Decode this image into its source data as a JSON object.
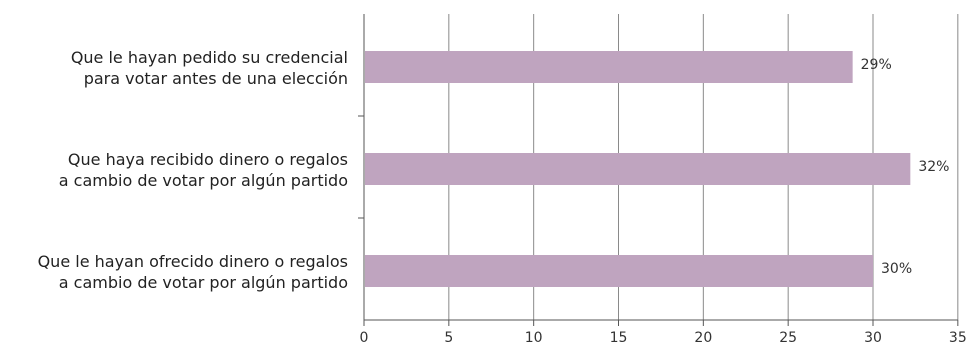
{
  "chart_data": {
    "type": "bar",
    "orientation": "horizontal",
    "categories": [
      [
        "Que le hayan pedido su credencial",
        "para votar antes de una elección"
      ],
      [
        "Que haya recibido dinero o regalos",
        "a cambio de votar por algún partido"
      ],
      [
        "Que le hayan ofrecido dinero o regalos",
        "a cambio de votar por algún partido"
      ]
    ],
    "values": [
      28.8,
      32.2,
      30.0
    ],
    "data_labels": [
      "29%",
      "32%",
      "30%"
    ],
    "xlim": [
      0,
      35
    ],
    "xticks": [
      0,
      5,
      10,
      15,
      20,
      25,
      30,
      35
    ],
    "title": "",
    "xlabel": "",
    "ylabel": "",
    "grid": "vertical",
    "legend": "none",
    "colors": {
      "bar": "#bfa4bf",
      "grid": "#8a8a8a",
      "axis": "#555555"
    }
  }
}
